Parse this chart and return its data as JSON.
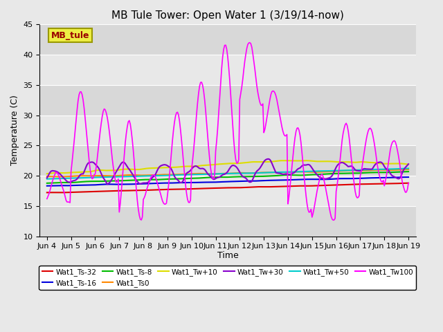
{
  "title": "MB Tule Tower: Open Water 1 (3/19/14-now)",
  "xlabel": "Time",
  "ylabel": "Temperature (C)",
  "ylim": [
    10,
    45
  ],
  "yticks": [
    10,
    15,
    20,
    25,
    30,
    35,
    40,
    45
  ],
  "background_color": "#e8e8e8",
  "plot_bg_color": "#e8e8e8",
  "annotation_label": "MB_tule",
  "annotation_color": "#990000",
  "annotation_bg": "#eeee44",
  "annotation_border": "#999900",
  "x_tick_labels": [
    "Jun 4",
    "Jun 5",
    "Jun 6",
    "Jun 7",
    "Jun 8",
    "Jun 9",
    "Jun 10",
    "Jun 11",
    "Jun 12",
    "Jun 13",
    "Jun 14",
    "Jun 15",
    "Jun 16",
    "Jun 17",
    "Jun 18",
    "Jun 19"
  ],
  "title_fontsize": 11,
  "axis_fontsize": 9,
  "tick_fontsize": 8,
  "series_order": [
    "Wat1_Ts-32",
    "Wat1_Ts-16",
    "Wat1_Ts-8",
    "Wat1_Ts0",
    "Wat1_Tw+10",
    "Wat1_Tw+30",
    "Wat1_Tw+50",
    "Wat1_Tw100"
  ],
  "legend_row1": [
    "Wat1_Ts-32",
    "Wat1_Ts-16",
    "Wat1_Ts-8",
    "Wat1_Ts0",
    "Wat1_Tw+10",
    "Wat1_Tw+30"
  ],
  "legend_row2": [
    "Wat1_Tw+50",
    "Wat1_Tw100"
  ],
  "series": {
    "Wat1_Ts-32": {
      "color": "#dd0000",
      "lw": 1.5
    },
    "Wat1_Ts-16": {
      "color": "#0000dd",
      "lw": 1.5
    },
    "Wat1_Ts-8": {
      "color": "#00bb00",
      "lw": 1.5
    },
    "Wat1_Ts0": {
      "color": "#ff8800",
      "lw": 1.5
    },
    "Wat1_Tw+10": {
      "color": "#dddd00",
      "lw": 1.5
    },
    "Wat1_Tw+30": {
      "color": "#8800cc",
      "lw": 1.5
    },
    "Wat1_Tw+50": {
      "color": "#00cccc",
      "lw": 1.5
    },
    "Wat1_Tw100": {
      "color": "#ff00ff",
      "lw": 1.2
    }
  }
}
